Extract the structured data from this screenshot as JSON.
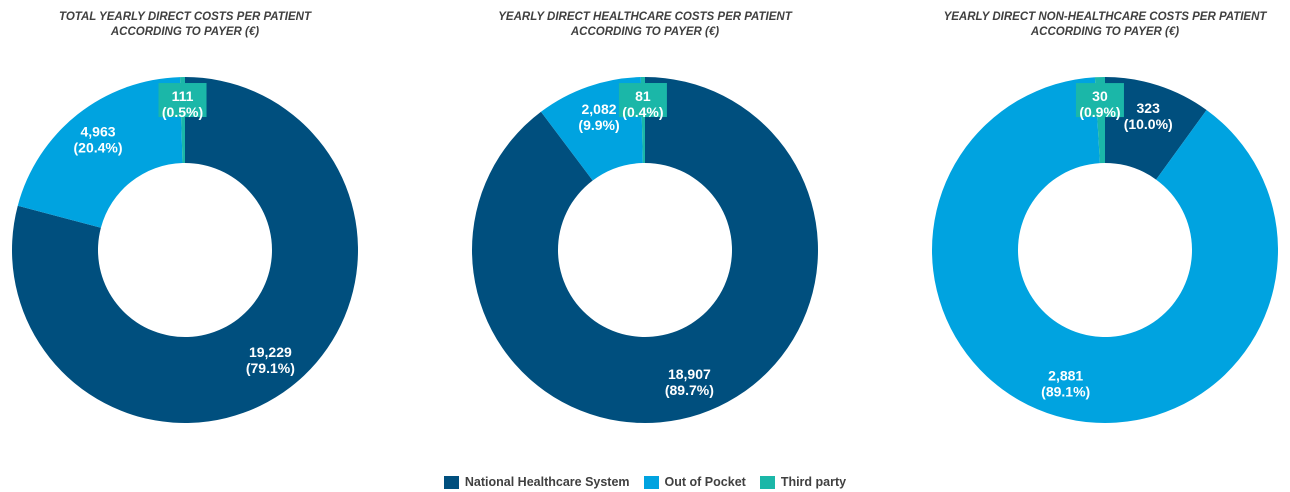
{
  "colors": {
    "nhs": "#004f7e",
    "out_of_pocket": "#00a3e0",
    "third_party": "#1bb7a8"
  },
  "legend": [
    {
      "key": "nhs",
      "label": "National Healthcare System",
      "color": "#004f7e"
    },
    {
      "key": "out_of_pocket",
      "label": "Out of Pocket",
      "color": "#00a3e0"
    },
    {
      "key": "third_party",
      "label": "Third party",
      "color": "#1bb7a8"
    }
  ],
  "chart_data": [
    {
      "type": "pie",
      "subtype": "donut",
      "title_line1": "TOTAL YEARLY DIRECT COSTS PER PATIENT",
      "title_line2": "ACCORDING TO PAYER (€)",
      "slices": [
        {
          "key": "nhs",
          "value": 19229,
          "value_label": "19,229",
          "pct_label": "(79.1%)"
        },
        {
          "key": "out_of_pocket",
          "value": 4963,
          "value_label": "4,963",
          "pct_label": "(20.4%)"
        },
        {
          "key": "third_party",
          "value": 111,
          "value_label": "111",
          "pct_label": "(0.5%)"
        }
      ]
    },
    {
      "type": "pie",
      "subtype": "donut",
      "title_line1": "YEARLY DIRECT HEALTHCARE COSTS PER PATIENT",
      "title_line2": "ACCORDING TO PAYER (€)",
      "slices": [
        {
          "key": "nhs",
          "value": 18907,
          "value_label": "18,907",
          "pct_label": "(89.7%)"
        },
        {
          "key": "out_of_pocket",
          "value": 2082,
          "value_label": "2,082",
          "pct_label": "(9.9%)"
        },
        {
          "key": "third_party",
          "value": 81,
          "value_label": "81",
          "pct_label": "(0.4%)"
        }
      ]
    },
    {
      "type": "pie",
      "subtype": "donut",
      "title_line1": "YEARLY DIRECT NON-HEALTHCARE COSTS PER PATIENT",
      "title_line2": "ACCORDING TO PAYER (€)",
      "slices": [
        {
          "key": "nhs",
          "value": 323,
          "value_label": "323",
          "pct_label": "(10.0%)"
        },
        {
          "key": "out_of_pocket",
          "value": 2881,
          "value_label": "2,881",
          "pct_label": "(89.1%)"
        },
        {
          "key": "third_party",
          "value": 30,
          "value_label": "30",
          "pct_label": "(0.9%)"
        }
      ]
    }
  ]
}
